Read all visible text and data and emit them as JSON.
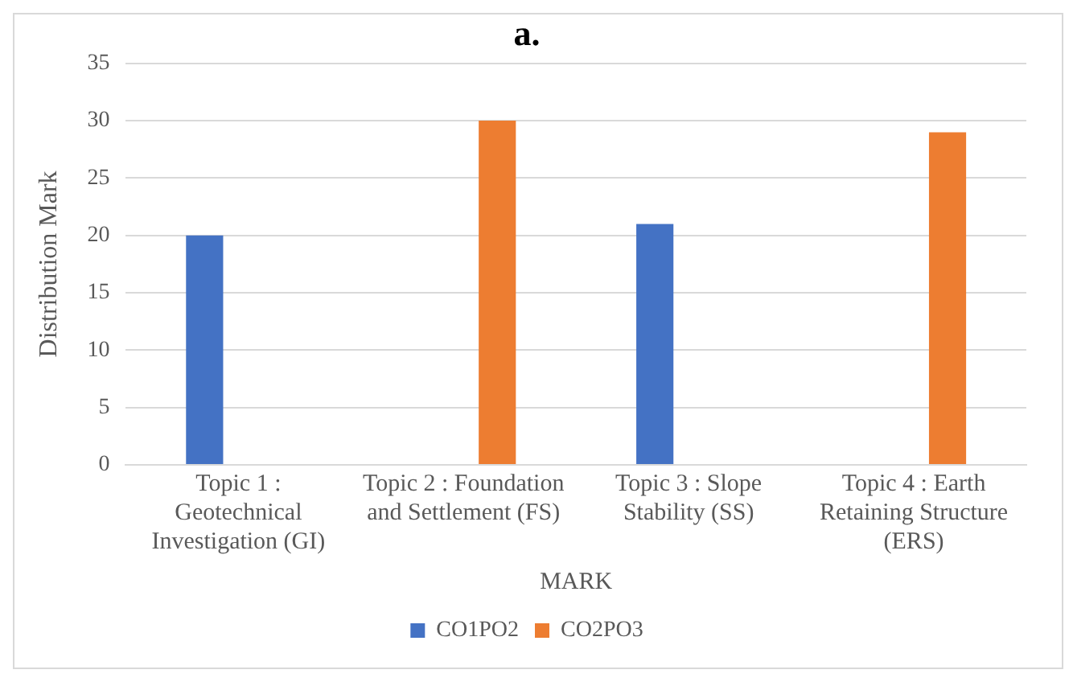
{
  "chart_data": {
    "type": "bar",
    "title": "a.",
    "xlabel": "MARK",
    "ylabel": "Distribution Mark",
    "categories": [
      "Topic 1 : Geotechnical Investigation (GI)",
      "Topic 2 : Foundation and Settlement (FS)",
      "Topic 3 : Slope Stability (SS)",
      "Topic 4 : Earth Retaining Structure (ERS)"
    ],
    "series": [
      {
        "name": "CO1PO2",
        "color": "#4472c4",
        "values": [
          20,
          null,
          21,
          null
        ]
      },
      {
        "name": "CO2PO3",
        "color": "#ed7d31",
        "values": [
          null,
          30,
          null,
          29
        ]
      }
    ],
    "ylim": [
      0,
      35
    ],
    "yticks": [
      0,
      5,
      10,
      15,
      20,
      25,
      30,
      35
    ],
    "grid": "y",
    "legend": "bottom"
  }
}
